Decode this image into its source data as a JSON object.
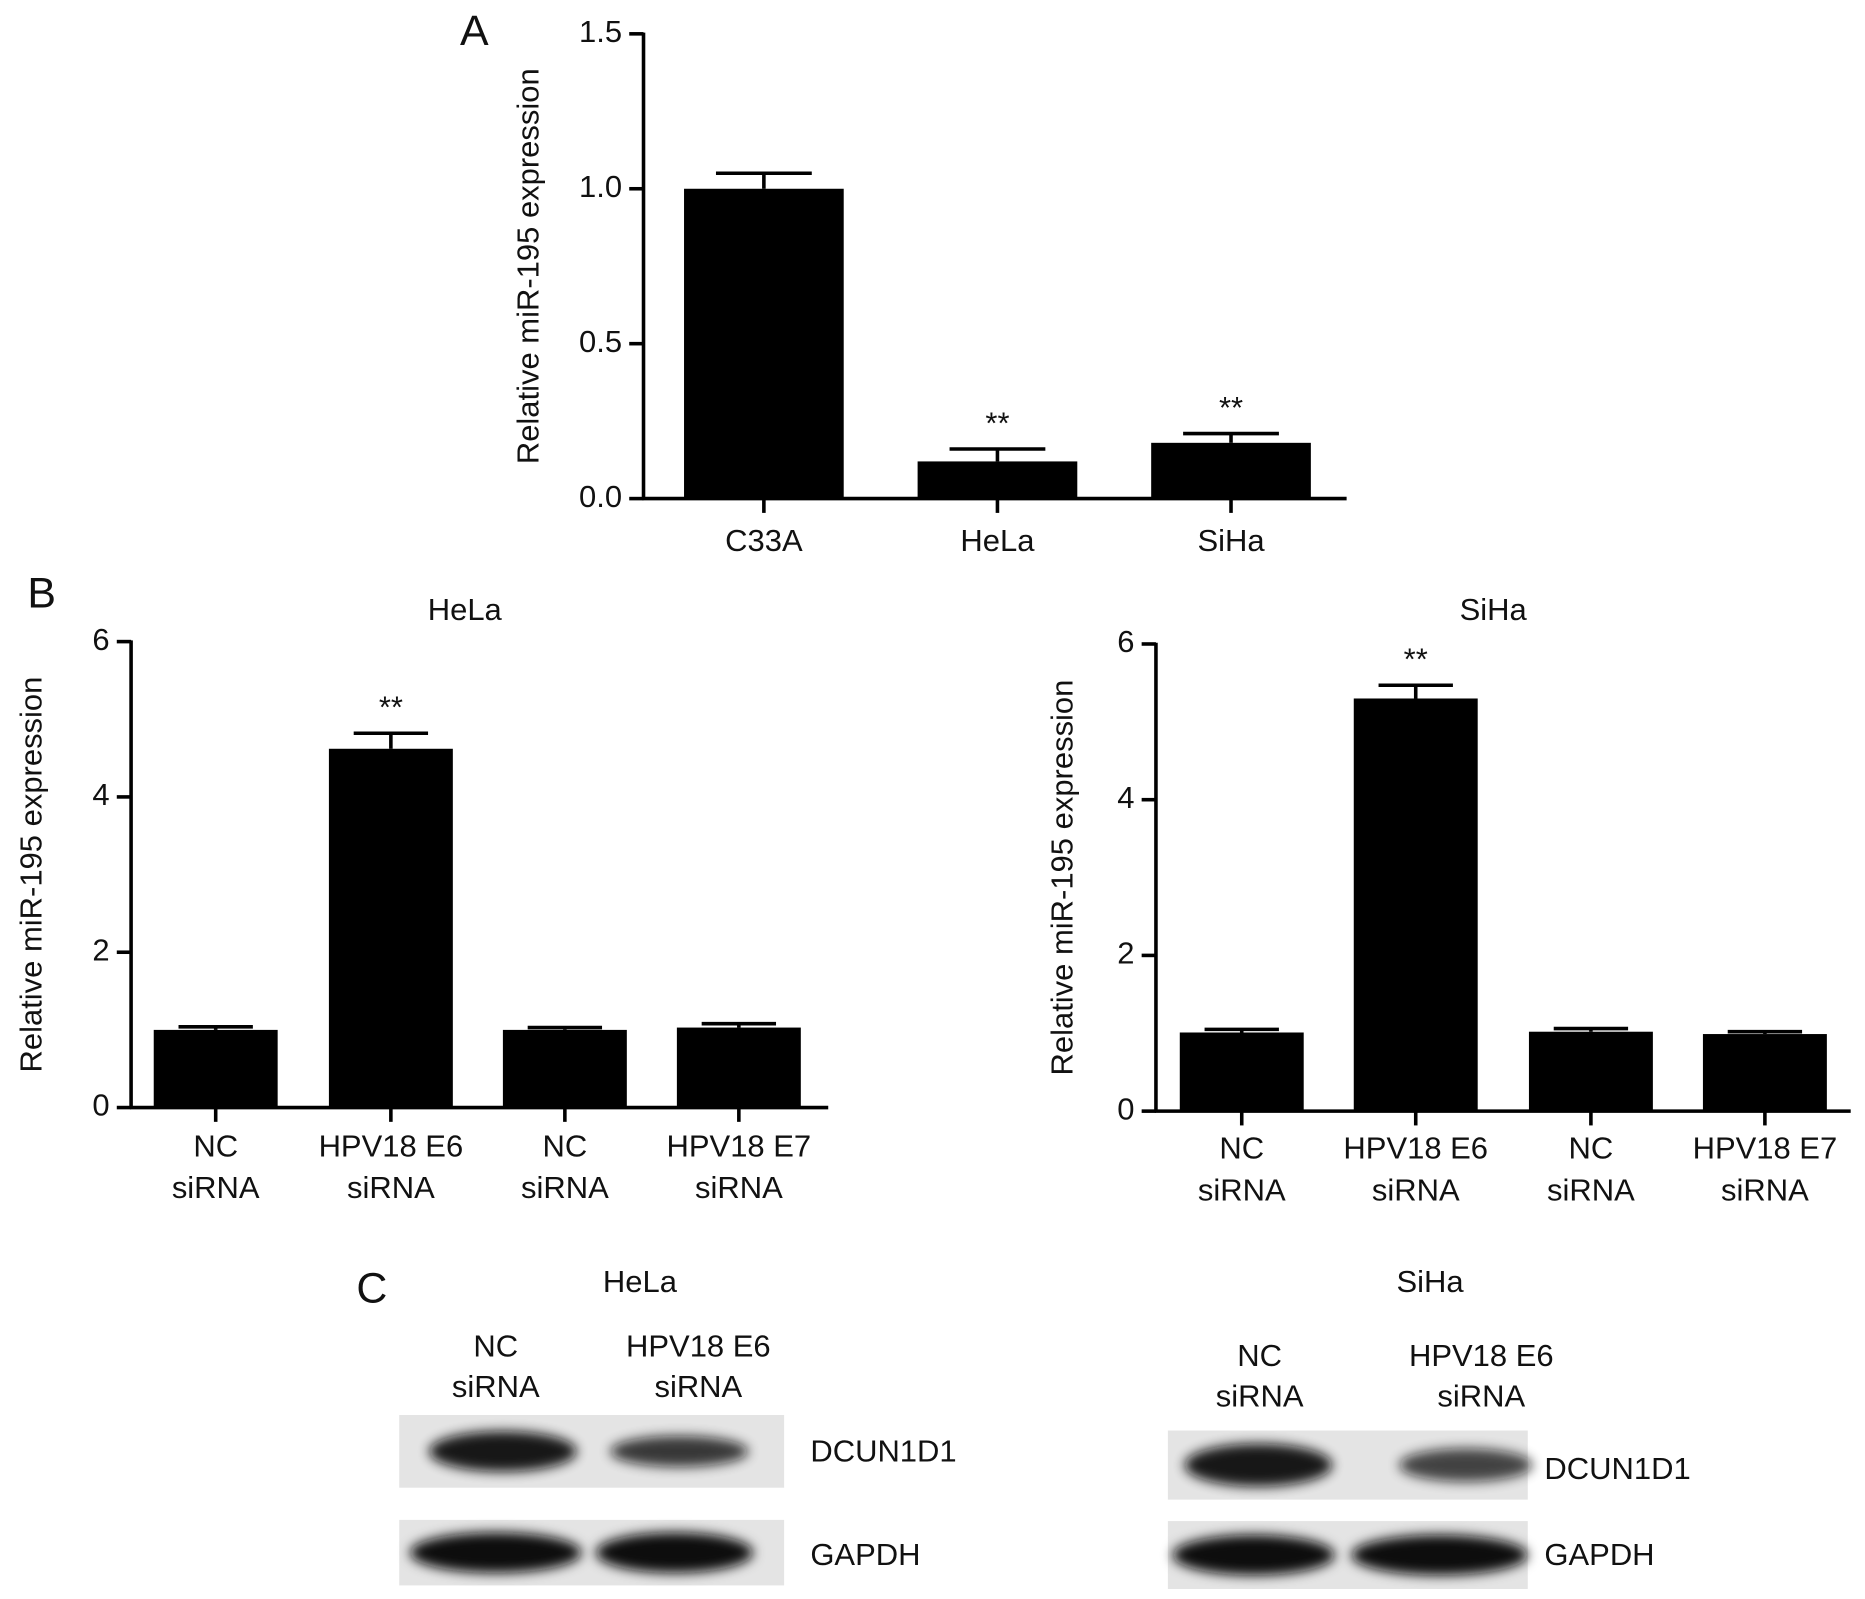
{
  "panels": [
    "A",
    "B",
    "C"
  ],
  "chart_data": [
    {
      "type": "bar",
      "y_label": "Relative miR-195 expression",
      "categories": [
        [
          "C33A"
        ],
        [
          "HeLa"
        ],
        [
          "SiHa"
        ]
      ],
      "values": [
        1.0,
        0.12,
        0.18
      ],
      "errors": [
        0.05,
        0.04,
        0.03
      ],
      "annotations": [
        null,
        "**",
        "**"
      ],
      "color": "#000000",
      "ylim": [
        0,
        1.5
      ],
      "yticks": [
        {
          "value": 0,
          "label": "0.0"
        },
        0.5,
        {
          "value": 1,
          "label": "1.0"
        },
        1.5
      ]
    },
    {
      "type": "bar",
      "title": "HeLa",
      "y_label": "Relative miR-195 expression",
      "categories": [
        [
          "NC",
          "siRNA"
        ],
        [
          "HPV18 E6",
          "siRNA"
        ],
        [
          "NC",
          "siRNA"
        ],
        [
          "HPV18 E7",
          "siRNA"
        ]
      ],
      "values": [
        1.0,
        4.62,
        1.0,
        1.03
      ],
      "errors": [
        0.04,
        0.2,
        0.03,
        0.05
      ],
      "annotations": [
        null,
        "**",
        null,
        null
      ],
      "color": "#000000",
      "ylim": [
        0,
        6
      ],
      "yticks": [
        0,
        2,
        4,
        6
      ]
    },
    {
      "type": "bar",
      "title": "SiHa",
      "y_label": "Relative miR-195 expression",
      "categories": [
        [
          "NC",
          "siRNA"
        ],
        [
          "HPV18 E6",
          "siRNA"
        ],
        [
          "NC",
          "siRNA"
        ],
        [
          "HPV18 E7",
          "siRNA"
        ]
      ],
      "values": [
        1.01,
        5.3,
        1.02,
        0.99
      ],
      "errors": [
        0.04,
        0.17,
        0.04,
        0.03
      ],
      "annotations": [
        null,
        "**",
        null,
        null
      ],
      "color": "#000000",
      "ylim": [
        0,
        6
      ],
      "yticks": [
        0,
        2,
        4,
        6
      ]
    }
  ],
  "blots": [
    {
      "title": "HeLa",
      "lanes": [
        [
          "NC",
          "siRNA"
        ],
        [
          "HPV18 E6",
          "siRNA"
        ]
      ],
      "proteins": [
        "DCUN1D1",
        "GAPDH"
      ]
    },
    {
      "title": "SiHa",
      "lanes": [
        [
          "NC",
          "siRNA"
        ],
        [
          "HPV18 E6",
          "siRNA"
        ]
      ],
      "proteins": [
        "DCUN1D1",
        "GAPDH"
      ]
    }
  ]
}
